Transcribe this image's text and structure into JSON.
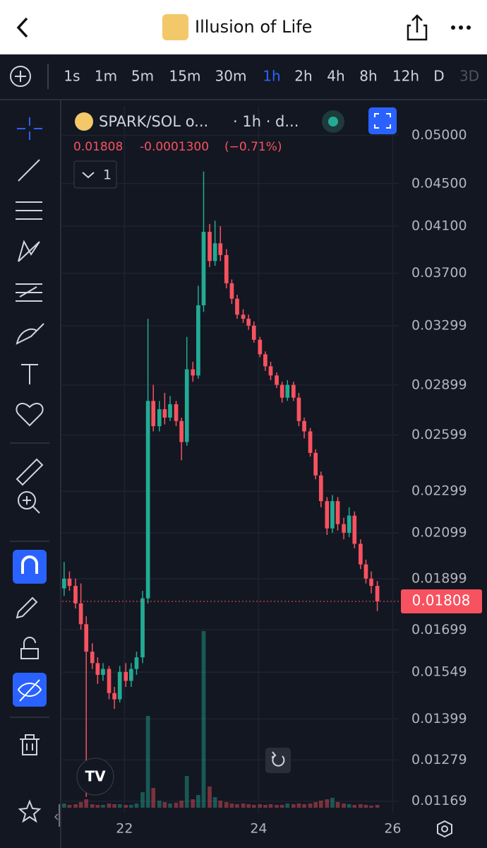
{
  "header": {
    "title": "Illusion of Life"
  },
  "intervals": [
    "1s",
    "1m",
    "5m",
    "15m",
    "30m",
    "1h",
    "2h",
    "4h",
    "8h",
    "12h",
    "D",
    "3D"
  ],
  "selected_interval": "1h",
  "legend": {
    "symbol": "SPARK/SOL o...",
    "details": "· 1h · d...",
    "price": "0.01808",
    "change": "-0.0001300",
    "change_pct": "(−0.71%)",
    "collapse_count": "1"
  },
  "chart_data": {
    "type": "candlestick",
    "log_scale": true,
    "grid": true,
    "up_color": "#22ab94",
    "down_color": "#f7525f",
    "xlim": [
      21.07,
      26.09
    ],
    "xticks": [
      22,
      24,
      26
    ],
    "ylim": [
      0.0114,
      0.0533
    ],
    "yticks": [
      {
        "value": 0.05,
        "label": "0.05000"
      },
      {
        "value": 0.045,
        "label": "0.04500"
      },
      {
        "value": 0.041,
        "label": "0.04100"
      },
      {
        "value": 0.037,
        "label": "0.03700"
      },
      0.03299,
      0.02899,
      0.02599,
      0.02299,
      0.02099,
      0.01899,
      0.01699,
      0.01549,
      0.01399,
      0.01279,
      0.01169
    ],
    "last_price": 0.01808,
    "x": [
      21.1,
      21.18,
      21.27,
      21.35,
      21.43,
      21.52,
      21.6,
      21.68,
      21.77,
      21.85,
      21.93,
      22.02,
      22.1,
      22.18,
      22.27,
      22.35,
      22.43,
      22.52,
      22.6,
      22.68,
      22.77,
      22.85,
      22.93,
      23.02,
      23.1,
      23.18,
      23.27,
      23.35,
      23.43,
      23.52,
      23.6,
      23.68,
      23.77,
      23.85,
      23.93,
      24.02,
      24.1,
      24.18,
      24.27,
      24.35,
      24.43,
      24.52,
      24.6,
      24.68,
      24.77,
      24.85,
      24.93,
      25.02,
      25.1,
      25.18,
      25.27,
      25.35,
      25.43,
      25.52,
      25.6,
      25.68,
      25.77
    ],
    "open": [
      0.0186,
      0.019,
      0.0187,
      0.018,
      0.0172,
      0.0162,
      0.0158,
      0.0154,
      0.0156,
      0.0148,
      0.0146,
      0.0155,
      0.0152,
      0.0156,
      0.016,
      0.0182,
      0.028,
      0.0265,
      0.0275,
      0.027,
      0.0278,
      0.0268,
      0.0256,
      0.03,
      0.0296,
      0.0345,
      0.0405,
      0.038,
      0.0395,
      0.0385,
      0.0362,
      0.035,
      0.0338,
      0.0335,
      0.033,
      0.032,
      0.031,
      0.0302,
      0.0296,
      0.029,
      0.0282,
      0.029,
      0.0282,
      0.0268,
      0.0262,
      0.025,
      0.0238,
      0.0225,
      0.0212,
      0.0225,
      0.0214,
      0.021,
      0.0218,
      0.0205,
      0.0196,
      0.019,
      0.0187
    ],
    "high": [
      0.0197,
      0.0193,
      0.019,
      0.0188,
      0.0175,
      0.0165,
      0.016,
      0.0158,
      0.0157,
      0.015,
      0.0157,
      0.0158,
      0.0158,
      0.0162,
      0.0185,
      0.0335,
      0.029,
      0.028,
      0.0285,
      0.0283,
      0.028,
      0.027,
      0.0322,
      0.0305,
      0.036,
      0.0462,
      0.0412,
      0.0415,
      0.041,
      0.039,
      0.0365,
      0.0353,
      0.0342,
      0.0338,
      0.0333,
      0.0322,
      0.0312,
      0.0305,
      0.0298,
      0.0292,
      0.0293,
      0.0292,
      0.0285,
      0.027,
      0.0264,
      0.0252,
      0.024,
      0.0227,
      0.0228,
      0.0227,
      0.0217,
      0.0222,
      0.022,
      0.0207,
      0.0198,
      0.0193,
      0.0189
    ],
    "low": [
      0.0183,
      0.0185,
      0.0178,
      0.017,
      0.0118,
      0.0156,
      0.0151,
      0.0152,
      0.0146,
      0.0143,
      0.0145,
      0.015,
      0.015,
      0.0154,
      0.0158,
      0.018,
      0.0262,
      0.0262,
      0.0266,
      0.0268,
      0.0265,
      0.0246,
      0.0254,
      0.0292,
      0.0294,
      0.034,
      0.0375,
      0.0376,
      0.038,
      0.0358,
      0.0346,
      0.0335,
      0.0332,
      0.0327,
      0.0318,
      0.0308,
      0.0299,
      0.0293,
      0.0288,
      0.0279,
      0.028,
      0.028,
      0.0265,
      0.0258,
      0.0248,
      0.0236,
      0.0222,
      0.0209,
      0.021,
      0.0211,
      0.0207,
      0.0208,
      0.0203,
      0.0194,
      0.0188,
      0.0184,
      0.0177
    ],
    "close": [
      0.019,
      0.0187,
      0.018,
      0.0172,
      0.0162,
      0.0158,
      0.0154,
      0.0156,
      0.0148,
      0.0146,
      0.0155,
      0.0152,
      0.0156,
      0.016,
      0.0182,
      0.028,
      0.0265,
      0.0275,
      0.027,
      0.0278,
      0.0268,
      0.0256,
      0.03,
      0.0296,
      0.0345,
      0.0405,
      0.038,
      0.0395,
      0.0385,
      0.0362,
      0.035,
      0.0338,
      0.0335,
      0.033,
      0.032,
      0.031,
      0.0302,
      0.0296,
      0.029,
      0.0282,
      0.029,
      0.0282,
      0.0268,
      0.0262,
      0.025,
      0.0238,
      0.0225,
      0.0212,
      0.0225,
      0.0214,
      0.021,
      0.0218,
      0.0205,
      0.0196,
      0.019,
      0.0187,
      0.01808
    ],
    "volume": [
      6,
      4,
      5,
      8,
      12,
      5,
      4,
      4,
      6,
      5,
      5,
      4,
      4,
      6,
      22,
      130,
      28,
      10,
      8,
      6,
      7,
      10,
      45,
      12,
      18,
      250,
      30,
      15,
      10,
      8,
      6,
      5,
      6,
      5,
      4,
      5,
      4,
      5,
      4,
      4,
      6,
      5,
      6,
      5,
      6,
      8,
      10,
      12,
      14,
      8,
      6,
      5,
      4,
      5,
      4,
      3,
      4
    ]
  }
}
